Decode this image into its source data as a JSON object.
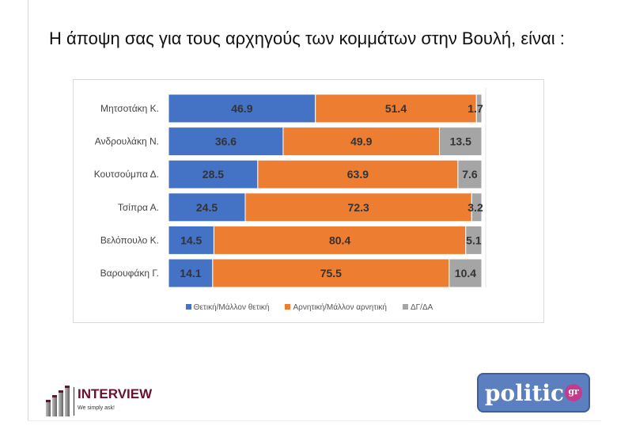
{
  "title": "Η άποψη σας για τους αρχηγούς των κομμάτων στην Βουλή,  είναι :",
  "chart_data": {
    "type": "bar",
    "orientation": "horizontal",
    "stacked": true,
    "categories": [
      "Μητσοτάκη Κ.",
      "Ανδρουλάκη Ν.",
      "Κουτσούμπα Δ.",
      "Τσίπρα Α.",
      "Βελόπουλο Κ.",
      "Βαρουφάκη Γ."
    ],
    "series": [
      {
        "name": "Θετική/Μάλλον θετική",
        "color": "#4472c4",
        "values": [
          46.9,
          36.6,
          28.5,
          24.5,
          14.5,
          14.1
        ]
      },
      {
        "name": "Αρνητική/Μάλλον αρνητική",
        "color": "#ed7d31",
        "values": [
          51.4,
          49.9,
          63.9,
          72.3,
          80.4,
          75.5
        ]
      },
      {
        "name": "ΔΓ/ΔΑ",
        "color": "#a5a5a5",
        "values": [
          1.7,
          13.5,
          7.6,
          3.2,
          5.1,
          10.4
        ]
      }
    ],
    "xlim": [
      0,
      100
    ],
    "legend": "bottom"
  },
  "logos": {
    "interview": "INTERVIEW",
    "interview_tagline": "We simply ask!",
    "politic": "politic",
    "politic_suffix": "gr"
  }
}
